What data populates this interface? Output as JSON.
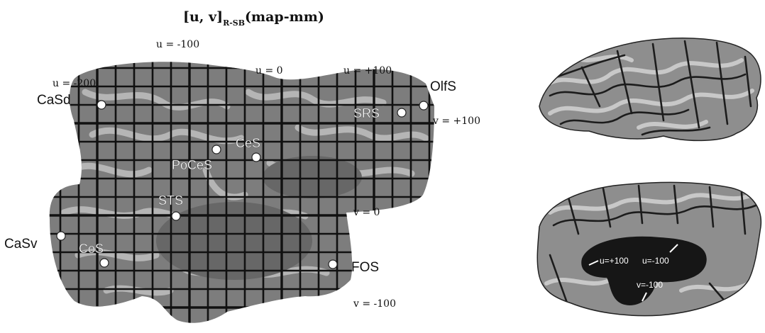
{
  "title": {
    "main": "[u, v]",
    "subscript": "R-SB",
    "suffix": "(map-mm)"
  },
  "flatmap": {
    "axis_labels": {
      "u_minus_100": "u = -100",
      "u_minus_200": "u = -200",
      "u_zero": "u = 0",
      "u_plus_100": "u = +100",
      "v_plus_100": "v = +100",
      "v_zero": "v = 0",
      "v_minus_100": "v = -100"
    },
    "landmarks": {
      "casd": "CaSd",
      "olfs": "OlfS",
      "srs": "SRS",
      "ces": "CeS",
      "poces": "PoCeS",
      "sts": "STS",
      "casv": "CaSv",
      "cos": "CoS",
      "fos": "FOS"
    }
  },
  "medial_view": {
    "labels": {
      "u_plus_100": "u=+100",
      "u_minus_100": "u=-100",
      "v_minus_100": "v=-100"
    }
  },
  "colors": {
    "map_base": "#7d7d7d",
    "map_light": "#b5b5b5",
    "map_dark": "#676767",
    "grid": "#111111",
    "brain_base": "#8e8e8e",
    "brain_dark": "#1c1c1c",
    "landmark": "#ffffff"
  }
}
